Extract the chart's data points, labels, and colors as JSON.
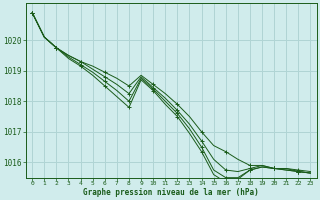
{
  "xlabel": "Graphe pression niveau de la mer (hPa)",
  "xlim": [
    -0.5,
    23.5
  ],
  "ylim": [
    1015.5,
    1021.2
  ],
  "yticks": [
    1016,
    1017,
    1018,
    1019,
    1020
  ],
  "xticks": [
    0,
    1,
    2,
    3,
    4,
    5,
    6,
    7,
    8,
    9,
    10,
    11,
    12,
    13,
    14,
    15,
    16,
    17,
    18,
    19,
    20,
    21,
    22,
    23
  ],
  "background_color": "#d0ecec",
  "grid_color": "#b0d4d4",
  "line_color": "#1a5c1a",
  "series": [
    [
      1020.9,
      1020.1,
      1019.75,
      1019.5,
      1019.3,
      1019.15,
      1018.95,
      1018.75,
      1018.5,
      1018.85,
      1018.55,
      1018.25,
      1017.9,
      1017.5,
      1017.0,
      1016.55,
      1016.35,
      1016.1,
      1015.9,
      1015.9,
      1015.8,
      1015.8,
      1015.75,
      1015.7
    ],
    [
      1020.9,
      1020.1,
      1019.75,
      1019.5,
      1019.3,
      1019.05,
      1018.8,
      1018.55,
      1018.25,
      1018.8,
      1018.45,
      1018.1,
      1017.7,
      1017.25,
      1016.7,
      1016.1,
      1015.75,
      1015.7,
      1015.8,
      1015.9,
      1015.8,
      1015.8,
      1015.7,
      1015.65
    ],
    [
      1020.9,
      1020.1,
      1019.75,
      1019.45,
      1019.2,
      1018.95,
      1018.65,
      1018.35,
      1018.0,
      1018.75,
      1018.4,
      1018.0,
      1017.6,
      1017.1,
      1016.5,
      1015.75,
      1015.5,
      1015.5,
      1015.75,
      1015.85,
      1015.8,
      1015.75,
      1015.7,
      1015.65
    ],
    [
      1020.9,
      1020.1,
      1019.75,
      1019.4,
      1019.15,
      1018.85,
      1018.5,
      1018.15,
      1017.8,
      1018.7,
      1018.35,
      1017.9,
      1017.5,
      1016.95,
      1016.35,
      1015.6,
      1015.35,
      1015.45,
      1015.75,
      1015.85,
      1015.8,
      1015.75,
      1015.7,
      1015.65
    ]
  ],
  "marker_positions": [
    [
      0,
      1,
      2,
      3,
      4,
      5,
      6,
      7,
      8,
      9,
      14,
      15,
      16,
      17,
      18,
      19,
      20,
      21,
      22,
      23
    ],
    [
      0,
      1,
      9,
      10,
      14,
      15,
      16,
      17,
      18,
      19,
      20,
      21,
      22,
      23
    ],
    [
      0,
      1,
      9,
      14,
      15,
      16,
      17,
      18,
      19,
      20,
      21,
      22,
      23
    ],
    [
      0,
      1,
      9,
      10,
      14,
      15,
      16,
      17,
      18,
      19,
      20,
      21,
      22,
      23
    ]
  ]
}
